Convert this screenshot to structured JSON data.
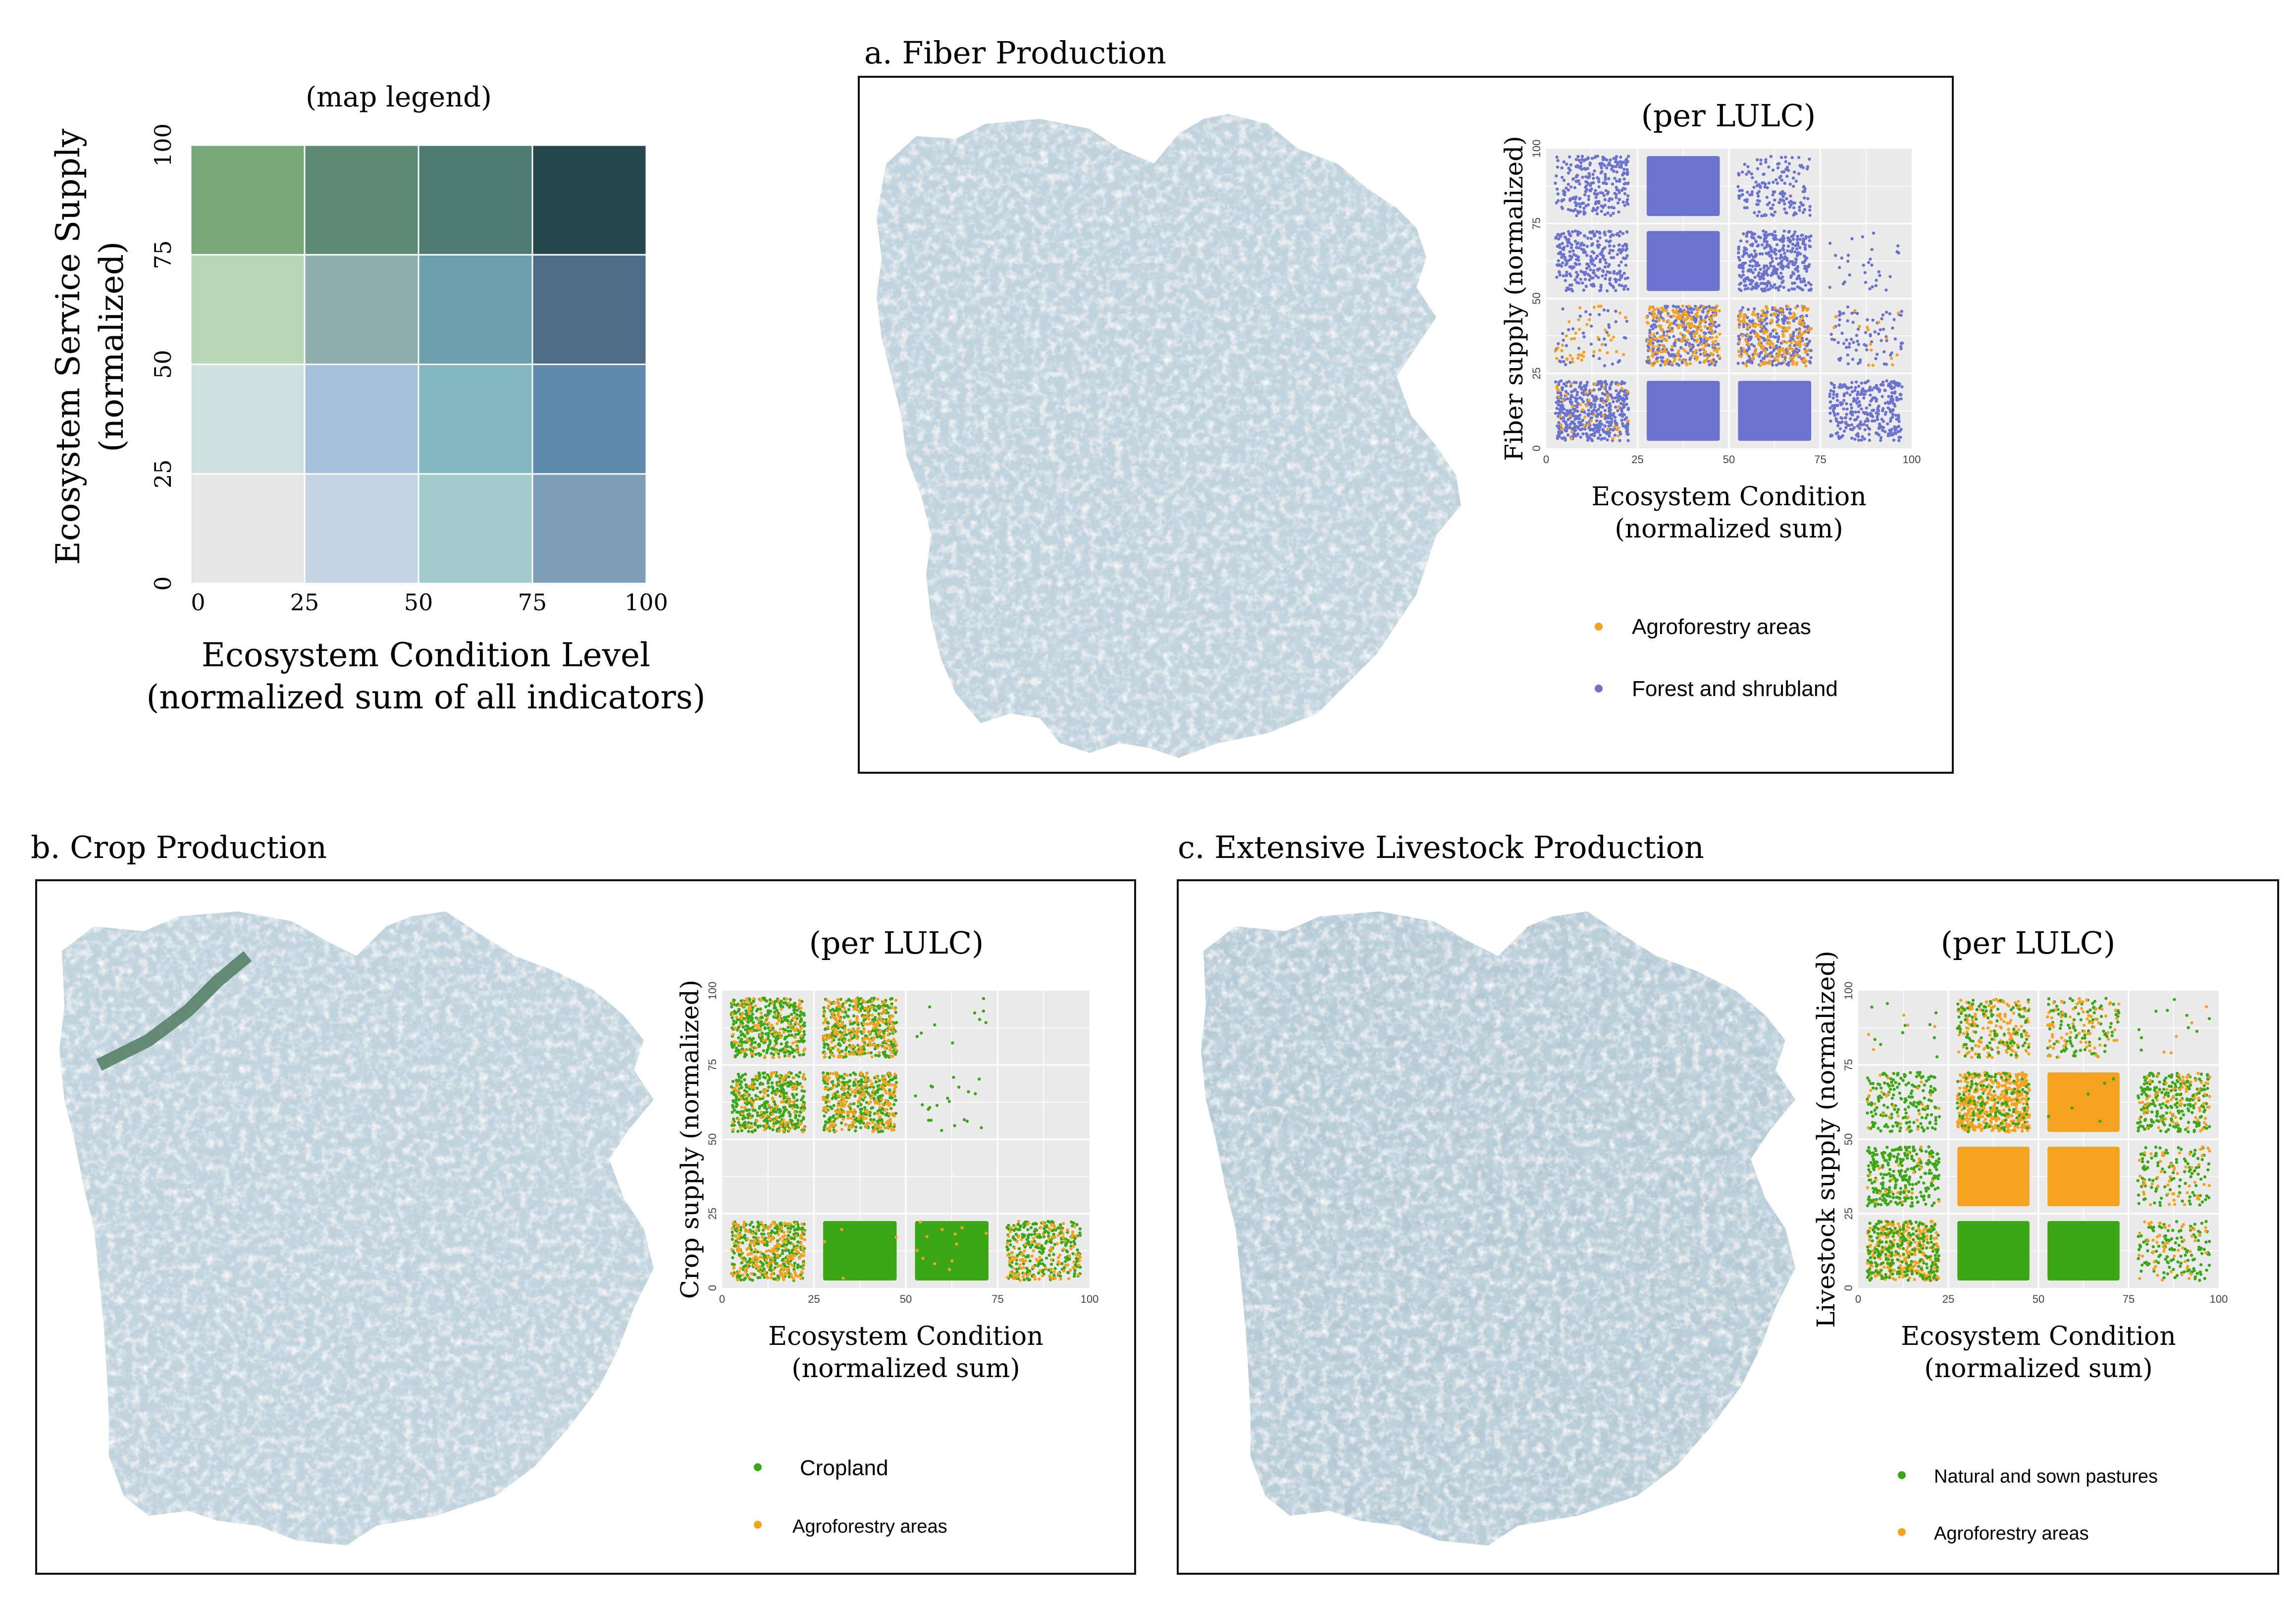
{
  "figure": {
    "legend_title": "(map legend)",
    "legend_ylabel_line1": "Ecosystem Service Supply",
    "legend_ylabel_line2": "(normalized)",
    "legend_xlabel_line1": "Ecosystem Condition Level",
    "legend_xlabel_line2": "(normalized sum of all indicators)",
    "legend_ticks": [
      "0",
      "25",
      "50",
      "75",
      "100"
    ],
    "legend_colors": [
      [
        "#e5e5e5",
        "#c4d4e4",
        "#a3cacb",
        "#7f9fb9"
      ],
      [
        "#cfe2e2",
        "#a7c0db",
        "#84b7c0",
        "#6089ae"
      ],
      [
        "#b9d8b8",
        "#8eaeac",
        "#6a9eaa",
        "#4e6b87"
      ],
      [
        "#78a978",
        "#5d8a73",
        "#4d7b71",
        "#254a4e"
      ]
    ],
    "panels": [
      {
        "title": "a. Fiber Production",
        "sub": "(per LULC)",
        "ylabel": "Fiber supply (normalized)",
        "xlabel1": "Ecosystem Condition",
        "xlabel2": "(normalized sum)",
        "legend": [
          "Agroforestry areas",
          "Forest and shrubland"
        ]
      },
      {
        "title": "b. Crop Production",
        "sub": "(per LULC)",
        "ylabel": "Crop supply (normalized)",
        "xlabel1": "Ecosystem Condition",
        "xlabel2": "(normalized sum)",
        "legend": [
          "Cropland",
          "Agroforestry areas"
        ]
      },
      {
        "title": "c. Extensive Livestock Production",
        "sub": "(per LULC)",
        "ylabel": "Livestock supply (normalized)",
        "xlabel1": "Ecosystem Condition",
        "xlabel2": "(normalized sum)",
        "legend": [
          "Natural and sown pastures",
          "Agroforestry areas"
        ]
      }
    ],
    "scatter_ticks": [
      "0",
      "25",
      "50",
      "75",
      "100"
    ]
  },
  "chart_data": [
    {
      "type": "heatmap",
      "title": "(map legend)",
      "xlabel": "Ecosystem Condition Level (normalized sum of all indicators)",
      "ylabel": "Ecosystem Service Supply (normalized)",
      "x_bins": [
        [
          0,
          25
        ],
        [
          25,
          50
        ],
        [
          50,
          75
        ],
        [
          75,
          100
        ]
      ],
      "y_bins": [
        [
          0,
          25
        ],
        [
          25,
          50
        ],
        [
          50,
          75
        ],
        [
          75,
          100
        ]
      ],
      "xlim": [
        0,
        100
      ],
      "ylim": [
        0,
        100
      ]
    },
    {
      "type": "scatter",
      "title": "a. Fiber Production (per LULC)",
      "xlabel": "Ecosystem Condition (normalized sum)",
      "ylabel": "Fiber supply (normalized)",
      "xlim": [
        0,
        100
      ],
      "ylim": [
        0,
        100
      ],
      "grid": true,
      "series": [
        {
          "name": "Agroforestry areas",
          "color": "#f4a21f"
        },
        {
          "name": "Forest and shrubland",
          "color": "#6b73cf"
        }
      ],
      "cells": [
        {
          "x": [
            0,
            25
          ],
          "y": [
            75,
            100
          ],
          "density": {
            "Forest and shrubland": 0.5,
            "Agroforestry areas": 0
          }
        },
        {
          "x": [
            25,
            50
          ],
          "y": [
            75,
            100
          ],
          "density": {
            "Forest and shrubland": 1,
            "Agroforestry areas": 0
          }
        },
        {
          "x": [
            50,
            75
          ],
          "y": [
            75,
            100
          ],
          "density": {
            "Forest and shrubland": 0.3,
            "Agroforestry areas": 0
          }
        },
        {
          "x": [
            0,
            25
          ],
          "y": [
            50,
            75
          ],
          "density": {
            "Forest and shrubland": 0.55,
            "Agroforestry areas": 0
          }
        },
        {
          "x": [
            25,
            50
          ],
          "y": [
            50,
            75
          ],
          "density": {
            "Forest and shrubland": 1,
            "Agroforestry areas": 0
          }
        },
        {
          "x": [
            50,
            75
          ],
          "y": [
            50,
            75
          ],
          "density": {
            "Forest and shrubland": 0.7,
            "Agroforestry areas": 0
          }
        },
        {
          "x": [
            75,
            100
          ],
          "y": [
            50,
            75
          ],
          "density": {
            "Forest and shrubland": 0.06,
            "Agroforestry areas": 0
          }
        },
        {
          "x": [
            0,
            25
          ],
          "y": [
            25,
            50
          ],
          "density": {
            "Forest and shrubland": 0.08,
            "Agroforestry areas": 0.08
          }
        },
        {
          "x": [
            25,
            50
          ],
          "y": [
            25,
            50
          ],
          "density": {
            "Forest and shrubland": 0.55,
            "Agroforestry areas": 0.4
          }
        },
        {
          "x": [
            50,
            75
          ],
          "y": [
            25,
            50
          ],
          "density": {
            "Forest and shrubland": 0.55,
            "Agroforestry areas": 0.35
          }
        },
        {
          "x": [
            75,
            100
          ],
          "y": [
            25,
            50
          ],
          "density": {
            "Forest and shrubland": 0.15,
            "Agroforestry areas": 0.03
          }
        },
        {
          "x": [
            0,
            25
          ],
          "y": [
            0,
            25
          ],
          "density": {
            "Forest and shrubland": 0.9,
            "Agroforestry areas": 0.08
          }
        },
        {
          "x": [
            25,
            50
          ],
          "y": [
            0,
            25
          ],
          "density": {
            "Forest and shrubland": 1,
            "Agroforestry areas": 0
          }
        },
        {
          "x": [
            50,
            75
          ],
          "y": [
            0,
            25
          ],
          "density": {
            "Forest and shrubland": 1,
            "Agroforestry areas": 0
          }
        },
        {
          "x": [
            75,
            100
          ],
          "y": [
            0,
            25
          ],
          "density": {
            "Forest and shrubland": 0.6,
            "Agroforestry areas": 0
          }
        }
      ]
    },
    {
      "type": "scatter",
      "title": "b. Crop Production (per LULC)",
      "xlabel": "Ecosystem Condition (normalized sum)",
      "ylabel": "Crop supply (normalized)",
      "xlim": [
        0,
        100
      ],
      "ylim": [
        0,
        100
      ],
      "grid": true,
      "series": [
        {
          "name": "Cropland",
          "color": "#3ba716"
        },
        {
          "name": "Agroforestry areas",
          "color": "#f4a21f"
        }
      ],
      "cells": [
        {
          "x": [
            0,
            25
          ],
          "y": [
            75,
            100
          ],
          "density": {
            "Cropland": 0.75,
            "Agroforestry areas": 0.2
          }
        },
        {
          "x": [
            25,
            50
          ],
          "y": [
            75,
            100
          ],
          "density": {
            "Cropland": 0.6,
            "Agroforestry areas": 0.4
          }
        },
        {
          "x": [
            50,
            75
          ],
          "y": [
            75,
            100
          ],
          "density": {
            "Cropland": 0.02,
            "Agroforestry areas": 0
          }
        },
        {
          "x": [
            0,
            25
          ],
          "y": [
            50,
            75
          ],
          "density": {
            "Cropland": 0.75,
            "Agroforestry areas": 0.2
          }
        },
        {
          "x": [
            25,
            50
          ],
          "y": [
            50,
            75
          ],
          "density": {
            "Cropland": 0.6,
            "Agroforestry areas": 0.4
          }
        },
        {
          "x": [
            50,
            75
          ],
          "y": [
            50,
            75
          ],
          "density": {
            "Cropland": 0.04,
            "Agroforestry areas": 0
          }
        },
        {
          "x": [
            0,
            25
          ],
          "y": [
            0,
            25
          ],
          "density": {
            "Cropland": 0.6,
            "Agroforestry areas": 0.4
          }
        },
        {
          "x": [
            25,
            50
          ],
          "y": [
            0,
            25
          ],
          "density": {
            "Cropland": 1,
            "Agroforestry areas": 0.03
          }
        },
        {
          "x": [
            50,
            75
          ],
          "y": [
            0,
            25
          ],
          "density": {
            "Cropland": 1,
            "Agroforestry areas": 0.1
          }
        },
        {
          "x": [
            75,
            100
          ],
          "y": [
            0,
            25
          ],
          "density": {
            "Cropland": 0.5,
            "Agroforestry areas": 0.25
          }
        }
      ]
    },
    {
      "type": "scatter",
      "title": "c. Extensive Livestock Production (per LULC)",
      "xlabel": "Ecosystem Condition (normalized sum)",
      "ylabel": "Livestock supply (normalized)",
      "xlim": [
        0,
        100
      ],
      "ylim": [
        0,
        100
      ],
      "grid": true,
      "series": [
        {
          "name": "Natural and sown pastures",
          "color": "#3ba716"
        },
        {
          "name": "Agroforestry areas",
          "color": "#f4a21f"
        }
      ],
      "cells": [
        {
          "x": [
            0,
            25
          ],
          "y": [
            75,
            100
          ],
          "density": {
            "Natural and sown pastures": 0.02,
            "Agroforestry areas": 0.01
          }
        },
        {
          "x": [
            25,
            50
          ],
          "y": [
            75,
            100
          ],
          "density": {
            "Natural and sown pastures": 0.2,
            "Agroforestry areas": 0.3
          }
        },
        {
          "x": [
            50,
            75
          ],
          "y": [
            75,
            100
          ],
          "density": {
            "Natural and sown pastures": 0.2,
            "Agroforestry areas": 0.15
          }
        },
        {
          "x": [
            75,
            100
          ],
          "y": [
            75,
            100
          ],
          "density": {
            "Natural and sown pastures": 0.02,
            "Agroforestry areas": 0.01
          }
        },
        {
          "x": [
            0,
            25
          ],
          "y": [
            50,
            75
          ],
          "density": {
            "Natural and sown pastures": 0.35,
            "Agroforestry areas": 0.05
          }
        },
        {
          "x": [
            25,
            50
          ],
          "y": [
            50,
            75
          ],
          "density": {
            "Natural and sown pastures": 0.25,
            "Agroforestry areas": 0.9
          }
        },
        {
          "x": [
            50,
            75
          ],
          "y": [
            50,
            75
          ],
          "density": {
            "Natural and sown pastures": 0.05,
            "Agroforestry areas": 1
          }
        },
        {
          "x": [
            75,
            100
          ],
          "y": [
            50,
            75
          ],
          "density": {
            "Natural and sown pastures": 0.45,
            "Agroforestry areas": 0.15
          }
        },
        {
          "x": [
            0,
            25
          ],
          "y": [
            25,
            50
          ],
          "density": {
            "Natural and sown pastures": 0.55,
            "Agroforestry areas": 0.05
          }
        },
        {
          "x": [
            25,
            50
          ],
          "y": [
            25,
            50
          ],
          "density": {
            "Natural and sown pastures": 0,
            "Agroforestry areas": 1
          }
        },
        {
          "x": [
            50,
            75
          ],
          "y": [
            25,
            50
          ],
          "density": {
            "Natural and sown pastures": 0,
            "Agroforestry areas": 1
          }
        },
        {
          "x": [
            75,
            100
          ],
          "y": [
            25,
            50
          ],
          "density": {
            "Natural and sown pastures": 0.2,
            "Agroforestry areas": 0.1
          }
        },
        {
          "x": [
            0,
            25
          ],
          "y": [
            0,
            25
          ],
          "density": {
            "Natural and sown pastures": 0.5,
            "Agroforestry areas": 0.6
          }
        },
        {
          "x": [
            25,
            50
          ],
          "y": [
            0,
            25
          ],
          "density": {
            "Natural and sown pastures": 1,
            "Agroforestry areas": 0
          }
        },
        {
          "x": [
            50,
            75
          ],
          "y": [
            0,
            25
          ],
          "density": {
            "Natural and sown pastures": 1,
            "Agroforestry areas": 0
          }
        },
        {
          "x": [
            75,
            100
          ],
          "y": [
            0,
            25
          ],
          "density": {
            "Natural and sown pastures": 0.25,
            "Agroforestry areas": 0.1
          }
        }
      ]
    }
  ]
}
